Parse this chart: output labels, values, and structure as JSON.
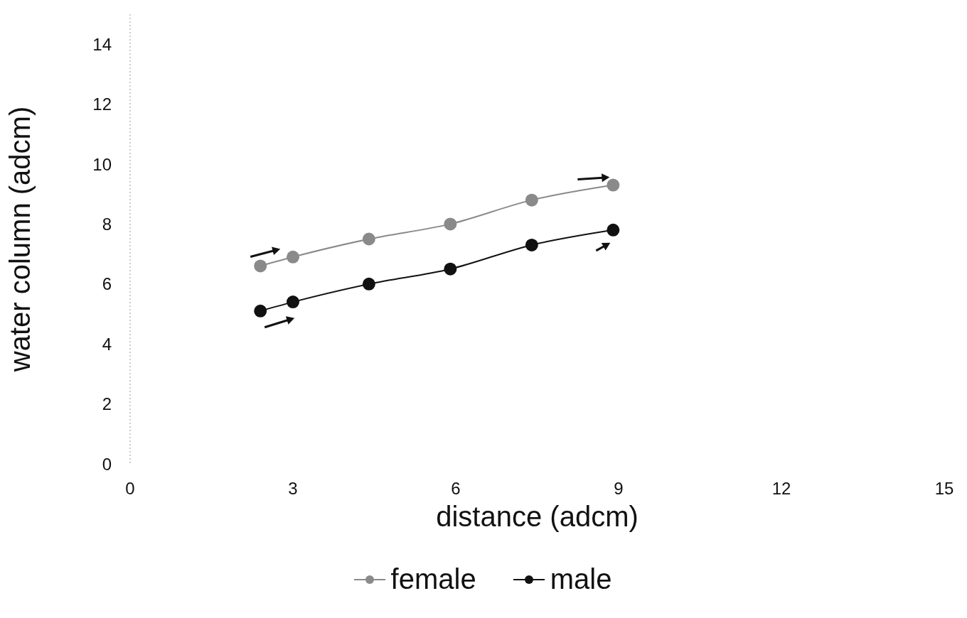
{
  "chart_data": {
    "type": "line",
    "xlabel": "distance (adcm)",
    "ylabel": "water column (adcm)",
    "xlim": [
      0,
      15
    ],
    "xticks": [
      0,
      3,
      6,
      9,
      12,
      15
    ],
    "ylim": [
      0,
      15
    ],
    "yticks": [
      0,
      2,
      4,
      6,
      8,
      10,
      12,
      14
    ],
    "legend": "bottom",
    "marker": "circle",
    "line_style": "solid",
    "series": [
      {
        "name": "female",
        "color": "#8a8a8a",
        "x": [
          2.4,
          3.0,
          4.4,
          5.9,
          7.4,
          8.9
        ],
        "values": [
          6.6,
          6.9,
          7.5,
          8.0,
          8.8,
          9.3
        ]
      },
      {
        "name": "male",
        "color": "#111111",
        "x": [
          2.4,
          3.0,
          4.4,
          5.9,
          7.4,
          8.9
        ],
        "values": [
          5.1,
          5.4,
          6.0,
          6.5,
          7.3,
          7.8
        ]
      }
    ]
  }
}
